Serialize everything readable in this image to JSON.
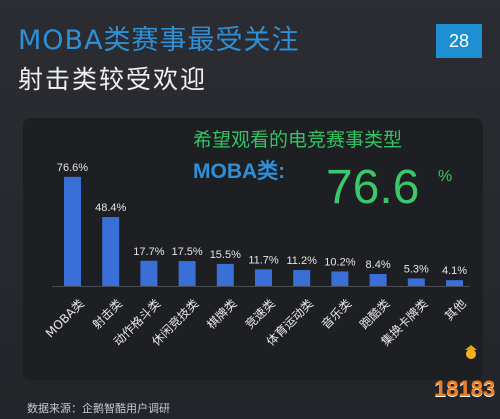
{
  "header": {
    "title_line1": "MOBA类赛事最受关注",
    "title_line2": "射击类较受欢迎",
    "page_number": "28"
  },
  "highlight": {
    "subtitle": "希望观看的电竞赛事类型",
    "label": "MOBA类:",
    "value": "76.6",
    "unit": "%"
  },
  "footer": {
    "source": "数据来源：企鹅智酷用户调研"
  },
  "logo": {
    "text": "18183"
  },
  "colors": {
    "background": "#26282e",
    "panel": "#1d1f23",
    "bar": "#3a6fd8",
    "title_blue": "#2f8fd6",
    "highlight_green": "#3bc86a",
    "page_box": "#1e8fd2",
    "logo_orange": "#f07b1c"
  },
  "chart_data": {
    "type": "bar",
    "title": "希望观看的电竞赛事类型",
    "categories": [
      "MOBA类",
      "射击类",
      "动作格斗类",
      "休闲竞技类",
      "棋牌类",
      "竞速类",
      "体育运动类",
      "音乐类",
      "跑酷类",
      "集换卡牌类",
      "其他"
    ],
    "values": [
      76.6,
      48.4,
      17.7,
      17.5,
      15.5,
      11.7,
      11.2,
      10.2,
      8.4,
      5.3,
      4.1
    ],
    "value_labels": [
      "76.6%",
      "48.4%",
      "17.7%",
      "17.5%",
      "15.5%",
      "11.7%",
      "11.2%",
      "10.2%",
      "8.4%",
      "5.3%",
      "4.1%"
    ],
    "xlabel": "",
    "ylabel": "",
    "ylim": [
      0,
      80
    ],
    "grid": false,
    "legend": "none"
  }
}
